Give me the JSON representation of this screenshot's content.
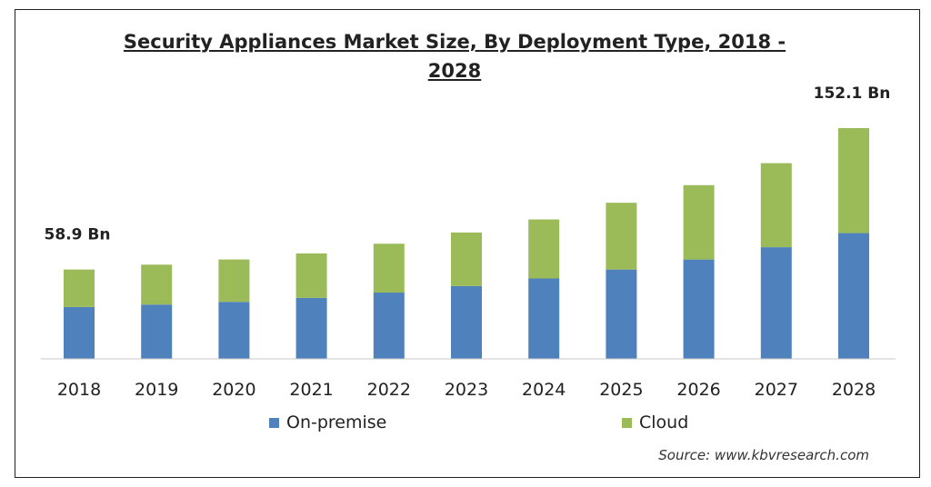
{
  "chart_data": {
    "type": "bar",
    "stacked": true,
    "title": "Security Appliances Market Size, By Deployment Type, 2018 - 2028",
    "categories": [
      "2018",
      "2019",
      "2020",
      "2021",
      "2022",
      "2023",
      "2024",
      "2025",
      "2026",
      "2027",
      "2028"
    ],
    "series": [
      {
        "name": "On-premise",
        "color": "#4f81bd",
        "values": [
          34.2,
          35.8,
          37.6,
          40.2,
          43.7,
          48.0,
          53.0,
          58.9,
          65.5,
          73.6,
          82.9
        ]
      },
      {
        "name": "Cloud",
        "color": "#9bbb59",
        "values": [
          24.7,
          26.3,
          27.9,
          29.3,
          32.2,
          35.3,
          38.9,
          44.0,
          49.0,
          55.4,
          69.2
        ]
      }
    ],
    "annotations": [
      {
        "category": "2018",
        "text": "58.9 Bn"
      },
      {
        "category": "2028",
        "text": "152.1 Bn"
      }
    ],
    "ylim": [
      0,
      152.1
    ],
    "grid": false,
    "legend": "bottom"
  },
  "source": "Source:  www.kbvresearch.com"
}
